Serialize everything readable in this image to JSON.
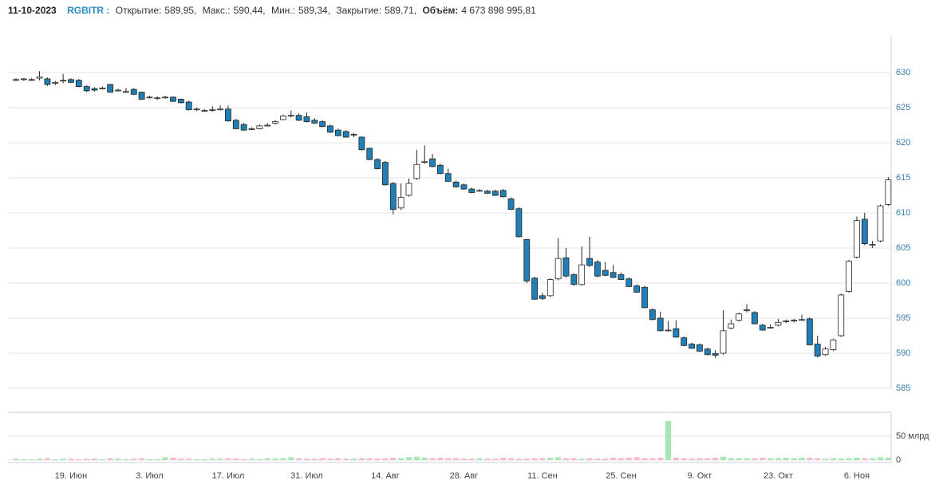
{
  "header": {
    "date": "11-10-2023",
    "ticker": "RGBITR :",
    "fields": [
      {
        "label": "Открытие:",
        "value": "589,95,"
      },
      {
        "label": "Макс.:",
        "value": "590,44,"
      },
      {
        "label": "Мин.:",
        "value": "589,34,"
      },
      {
        "label": "Закрытие:",
        "value": "589,71,"
      },
      {
        "label": "Объём:",
        "value": "4 673 898 995,81"
      }
    ]
  },
  "chart_data": {
    "type": "candlestick",
    "categories": [
      null,
      null,
      null,
      null,
      null,
      null,
      null,
      "19. Июн",
      null,
      null,
      null,
      null,
      null,
      null,
      null,
      null,
      null,
      "3. Июл",
      null,
      null,
      null,
      null,
      null,
      null,
      null,
      null,
      null,
      "17. Июл",
      null,
      null,
      null,
      null,
      null,
      null,
      null,
      null,
      null,
      "31. Июл",
      null,
      null,
      null,
      null,
      null,
      null,
      null,
      null,
      null,
      "14. Авг",
      null,
      null,
      null,
      null,
      null,
      null,
      null,
      null,
      null,
      "28. Авг",
      null,
      null,
      null,
      null,
      null,
      null,
      null,
      null,
      null,
      "11. Сен",
      null,
      null,
      null,
      null,
      null,
      null,
      null,
      null,
      null,
      "25. Сен",
      null,
      null,
      null,
      null,
      null,
      null,
      null,
      null,
      null,
      "9. Окт",
      null,
      null,
      null,
      null,
      null,
      null,
      null,
      null,
      null,
      "23. Окт",
      null,
      null,
      null,
      null,
      null,
      null,
      null,
      null,
      null,
      "6. Ноя",
      null,
      null,
      null,
      null
    ],
    "open": [
      629.0,
      629.0,
      629.0,
      629.2,
      629.1,
      628.5,
      628.8,
      629.0,
      628.9,
      628.0,
      627.7,
      627.8,
      628.3,
      627.5,
      627.3,
      627.6,
      627.2,
      626.5,
      626.3,
      626.5,
      626.5,
      626.2,
      625.8,
      624.8,
      624.6,
      624.6,
      624.8,
      624.8,
      623.2,
      622.6,
      622.0,
      622.0,
      622.5,
      622.8,
      623.3,
      623.9,
      623.9,
      623.7,
      623.2,
      623.0,
      622.4,
      621.8,
      621.6,
      621.2,
      620.8,
      619.2,
      617.6,
      617.2,
      614.2,
      610.7,
      612.5,
      614.9,
      617.2,
      617.7,
      616.8,
      615.6,
      614.4,
      614.0,
      613.4,
      613.2,
      613.1,
      613.1,
      613.2,
      612.0,
      610.6,
      606.2,
      600.7,
      598.2,
      598.2,
      600.6,
      603.6,
      601.2,
      599.8,
      603.5,
      603.0,
      601.8,
      601.5,
      601.2,
      600.6,
      599.6,
      599.4,
      596.2,
      595.0,
      593.3,
      593.5,
      592.2,
      591.3,
      591.2,
      590.6,
      589.95,
      590.0,
      593.6,
      594.7,
      596.2,
      595.8,
      594.0,
      593.7,
      594.0,
      594.6,
      594.6,
      594.8,
      594.9,
      591.3,
      589.8,
      590.5,
      592.5,
      598.8,
      603.7,
      609.1,
      605.5,
      606.0,
      611.2
    ],
    "high": [
      629.2,
      629.2,
      629.2,
      630.2,
      629.3,
      628.8,
      629.8,
      629.2,
      629.1,
      628.2,
      627.9,
      628.0,
      628.4,
      627.7,
      627.8,
      627.8,
      627.3,
      626.7,
      626.6,
      626.7,
      626.6,
      626.3,
      626.0,
      625.0,
      624.8,
      625.2,
      625.3,
      625.3,
      623.4,
      622.8,
      622.2,
      622.6,
      622.8,
      623.2,
      624.0,
      624.6,
      624.2,
      624.3,
      623.5,
      623.2,
      622.6,
      622.0,
      621.8,
      621.4,
      620.9,
      619.3,
      617.8,
      617.4,
      614.4,
      614.2,
      614.9,
      619.0,
      619.6,
      618.4,
      617.0,
      616.3,
      614.6,
      614.2,
      613.6,
      613.4,
      613.3,
      613.3,
      613.4,
      612.2,
      610.8,
      606.3,
      600.9,
      598.6,
      600.7,
      606.4,
      605.0,
      601.4,
      605.2,
      606.6,
      603.3,
      603.0,
      602.6,
      601.5,
      600.8,
      599.8,
      599.6,
      596.4,
      595.9,
      594.6,
      594.7,
      592.4,
      591.5,
      591.4,
      590.8,
      590.44,
      596.1,
      594.8,
      595.8,
      597.0,
      596.0,
      594.2,
      594.1,
      594.9,
      594.8,
      594.9,
      595.5,
      595.1,
      592.5,
      590.9,
      592.1,
      598.5,
      603.3,
      609.5,
      610.0,
      606.0,
      611.2,
      615.1
    ],
    "low": [
      628.8,
      628.8,
      628.8,
      628.9,
      628.1,
      628.2,
      628.5,
      628.5,
      627.9,
      627.2,
      627.3,
      627.6,
      627.1,
      627.3,
      627.1,
      626.8,
      626.1,
      626.3,
      626.1,
      626.3,
      625.8,
      625.6,
      624.6,
      624.5,
      624.4,
      624.4,
      624.6,
      623.0,
      621.9,
      621.7,
      621.8,
      621.9,
      622.3,
      622.6,
      623.2,
      623.6,
      623.1,
      622.9,
      622.7,
      622.2,
      621.4,
      620.9,
      620.7,
      620.8,
      618.9,
      617.5,
      616.2,
      613.9,
      609.8,
      610.4,
      612.3,
      614.7,
      617.0,
      616.5,
      615.5,
      614.4,
      613.6,
      613.3,
      612.8,
      613.0,
      612.7,
      612.4,
      612.2,
      610.4,
      606.5,
      600.0,
      597.6,
      597.6,
      598.0,
      600.4,
      600.8,
      599.6,
      599.6,
      602.3,
      600.8,
      601.0,
      600.7,
      600.4,
      599.4,
      598.6,
      596.4,
      594.7,
      593.1,
      593.1,
      592.2,
      591.0,
      590.6,
      590.2,
      589.7,
      589.34,
      589.8,
      593.4,
      594.5,
      595.8,
      594.1,
      593.2,
      593.5,
      593.8,
      594.3,
      594.4,
      594.6,
      591.1,
      589.4,
      589.6,
      590.3,
      592.3,
      598.6,
      603.5,
      605.4,
      605.0,
      605.8,
      611.0
    ],
    "close": [
      629.0,
      629.1,
      629.0,
      629.4,
      628.3,
      628.6,
      628.9,
      628.6,
      628.0,
      627.4,
      627.5,
      627.8,
      627.2,
      627.5,
      627.3,
      626.9,
      626.2,
      626.5,
      626.4,
      626.5,
      625.9,
      625.7,
      624.7,
      624.8,
      624.6,
      624.7,
      624.8,
      623.1,
      622.0,
      621.8,
      622.0,
      622.4,
      622.5,
      623.0,
      623.8,
      623.9,
      623.2,
      623.0,
      622.8,
      622.3,
      621.5,
      621.0,
      620.8,
      621.2,
      619.0,
      617.6,
      616.3,
      614.0,
      610.5,
      612.2,
      614.2,
      616.9,
      617.3,
      616.6,
      615.6,
      614.5,
      613.7,
      613.4,
      612.9,
      613.2,
      612.8,
      612.5,
      612.3,
      610.5,
      606.6,
      600.3,
      597.7,
      597.8,
      600.5,
      603.5,
      601.0,
      599.8,
      602.6,
      602.5,
      601.0,
      601.1,
      600.8,
      600.5,
      599.5,
      598.7,
      596.5,
      594.8,
      593.2,
      593.3,
      592.3,
      591.1,
      590.7,
      590.3,
      589.8,
      589.71,
      593.2,
      594.2,
      595.6,
      596.2,
      594.2,
      593.3,
      593.7,
      594.4,
      594.6,
      594.7,
      594.8,
      591.2,
      589.6,
      590.6,
      591.9,
      598.3,
      603.1,
      608.9,
      605.6,
      605.5,
      611.0,
      614.7
    ],
    "volume": [
      3,
      2,
      2,
      3,
      4,
      2,
      3,
      3,
      2,
      3,
      3,
      2,
      4,
      3,
      2,
      3,
      4,
      2,
      2,
      6,
      5,
      3,
      3,
      2,
      2,
      3,
      3,
      4,
      3,
      2,
      3,
      2,
      4,
      3,
      4,
      6,
      4,
      3,
      3,
      4,
      3,
      4,
      3,
      3,
      4,
      4,
      3,
      4,
      5,
      4,
      6,
      7,
      5,
      4,
      5,
      4,
      4,
      3,
      3,
      4,
      3,
      3,
      5,
      4,
      3,
      3,
      4,
      4,
      5,
      6,
      4,
      4,
      3,
      4,
      3,
      3,
      5,
      4,
      5,
      6,
      4,
      4,
      5,
      82,
      5,
      4,
      3,
      4,
      4,
      5,
      7,
      4,
      4,
      4,
      4,
      5,
      4,
      4,
      5,
      4,
      5,
      5,
      4,
      3,
      4,
      3,
      4,
      5,
      4,
      4,
      6,
      5
    ],
    "ylim": [
      585,
      635
    ],
    "yticks": [
      585,
      590,
      595,
      600,
      605,
      610,
      615,
      620,
      625,
      630
    ],
    "volume_ylim": [
      0,
      100
    ],
    "volume_ticks": [
      0,
      {
        "value": 50,
        "label": "50 млрд"
      }
    ],
    "grid": true,
    "up_color": "#ffffff",
    "down_color": "#1f7fb6",
    "volume_up_color": "#a8e6b4",
    "volume_down_color": "#f6b8cc"
  }
}
